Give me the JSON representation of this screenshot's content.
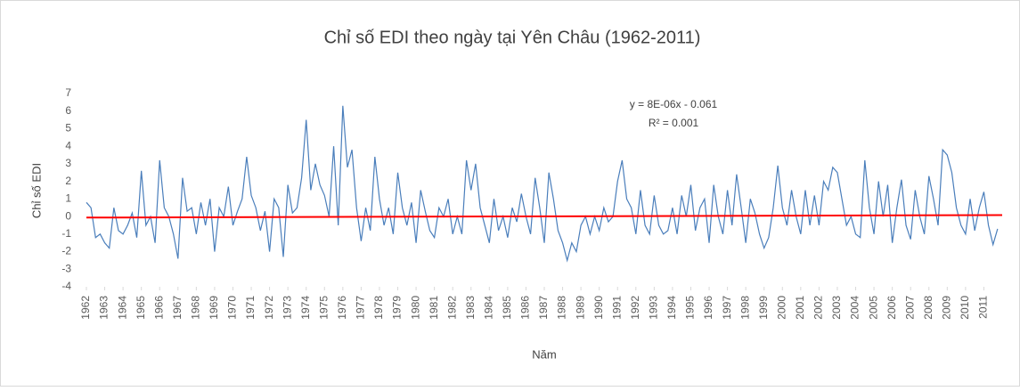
{
  "chart_data": {
    "type": "line",
    "title": "Chỉ số EDI theo ngày tại Yên Châu (1962-2011)",
    "x_label": "Năm",
    "y_label": "Chỉ số EDI",
    "annotations": [
      "y = 8E-06x - 0.061",
      "R² = 0.001"
    ],
    "xlim": [
      1962,
      2012
    ],
    "xticks": [
      1962,
      1963,
      1964,
      1965,
      1966,
      1967,
      1968,
      1969,
      1970,
      1971,
      1972,
      1973,
      1974,
      1975,
      1976,
      1977,
      1978,
      1979,
      1980,
      1981,
      1982,
      1983,
      1984,
      1985,
      1986,
      1987,
      1988,
      1989,
      1990,
      1991,
      1992,
      1993,
      1994,
      1995,
      1996,
      1997,
      1998,
      1999,
      2000,
      2001,
      2002,
      2003,
      2004,
      2005,
      2006,
      2007,
      2008,
      2009,
      2010,
      2011
    ],
    "ylim": [
      -4,
      7
    ],
    "yticks": [
      -4,
      -3,
      -2,
      -1,
      0,
      1,
      2,
      3,
      4,
      5,
      6,
      7
    ],
    "grid": false,
    "trend": {
      "color": "#ff0000",
      "x": [
        1962,
        2012
      ],
      "values": [
        -0.06,
        0.08
      ]
    },
    "series": [
      {
        "name": "EDI",
        "color": "#4a7ebb",
        "x": [
          1962,
          1962.25,
          1962.5,
          1962.75,
          1963,
          1963.25,
          1963.5,
          1963.75,
          1964,
          1964.25,
          1964.5,
          1964.75,
          1965,
          1965.25,
          1965.5,
          1965.75,
          1966,
          1966.25,
          1966.5,
          1966.75,
          1967,
          1967.25,
          1967.5,
          1967.75,
          1968,
          1968.25,
          1968.5,
          1968.75,
          1969,
          1969.25,
          1969.5,
          1969.75,
          1970,
          1970.25,
          1970.5,
          1970.75,
          1971,
          1971.25,
          1971.5,
          1971.75,
          1972,
          1972.25,
          1972.5,
          1972.75,
          1973,
          1973.25,
          1973.5,
          1973.75,
          1974,
          1974.25,
          1974.5,
          1974.75,
          1975,
          1975.25,
          1975.5,
          1975.75,
          1976,
          1976.25,
          1976.5,
          1976.75,
          1977,
          1977.25,
          1977.5,
          1977.75,
          1978,
          1978.25,
          1978.5,
          1978.75,
          1979,
          1979.25,
          1979.5,
          1979.75,
          1980,
          1980.25,
          1980.5,
          1980.75,
          1981,
          1981.25,
          1981.5,
          1981.75,
          1982,
          1982.25,
          1982.5,
          1982.75,
          1983,
          1983.25,
          1983.5,
          1983.75,
          1984,
          1984.25,
          1984.5,
          1984.75,
          1985,
          1985.25,
          1985.5,
          1985.75,
          1986,
          1986.25,
          1986.5,
          1986.75,
          1987,
          1987.25,
          1987.5,
          1987.75,
          1988,
          1988.25,
          1988.5,
          1988.75,
          1989,
          1989.25,
          1989.5,
          1989.75,
          1990,
          1990.25,
          1990.5,
          1990.75,
          1991,
          1991.25,
          1991.5,
          1991.75,
          1992,
          1992.25,
          1992.5,
          1992.75,
          1993,
          1993.25,
          1993.5,
          1993.75,
          1994,
          1994.25,
          1994.5,
          1994.75,
          1995,
          1995.25,
          1995.5,
          1995.75,
          1996,
          1996.25,
          1996.5,
          1996.75,
          1997,
          1997.25,
          1997.5,
          1997.75,
          1998,
          1998.25,
          1998.5,
          1998.75,
          1999,
          1999.25,
          1999.5,
          1999.75,
          2000,
          2000.25,
          2000.5,
          2000.75,
          2001,
          2001.25,
          2001.5,
          2001.75,
          2002,
          2002.25,
          2002.5,
          2002.75,
          2003,
          2003.25,
          2003.5,
          2003.75,
          2004,
          2004.25,
          2004.5,
          2004.75,
          2005,
          2005.25,
          2005.5,
          2005.75,
          2006,
          2006.25,
          2006.5,
          2006.75,
          2007,
          2007.25,
          2007.5,
          2007.75,
          2008,
          2008.25,
          2008.5,
          2008.75,
          2009,
          2009.25,
          2009.5,
          2009.75,
          2010,
          2010.25,
          2010.5,
          2010.75,
          2011,
          2011.25,
          2011.5,
          2011.75
        ],
        "values": [
          0.8,
          0.5,
          -1.2,
          -1.0,
          -1.5,
          -1.8,
          0.5,
          -0.8,
          -1.0,
          -0.5,
          0.2,
          -1.2,
          2.6,
          -0.5,
          0.0,
          -1.5,
          3.2,
          0.5,
          0.0,
          -1.0,
          -2.4,
          2.2,
          0.3,
          0.5,
          -1.0,
          0.8,
          -0.5,
          1.0,
          -2.0,
          0.5,
          0.0,
          1.7,
          -0.5,
          0.3,
          1.0,
          3.4,
          1.2,
          0.5,
          -0.8,
          0.3,
          -2.0,
          1.0,
          0.5,
          -2.3,
          1.8,
          0.2,
          0.5,
          2.2,
          5.5,
          1.5,
          3.0,
          1.8,
          1.2,
          0.0,
          4.0,
          -0.5,
          6.3,
          2.8,
          3.8,
          0.5,
          -1.4,
          0.5,
          -0.8,
          3.4,
          1.0,
          -0.5,
          0.5,
          -1.0,
          2.5,
          0.5,
          -0.5,
          0.8,
          -1.5,
          1.5,
          0.3,
          -0.8,
          -1.2,
          0.5,
          0.0,
          1.0,
          -1.0,
          0.0,
          -1.0,
          3.2,
          1.5,
          3.0,
          0.5,
          -0.5,
          -1.5,
          1.0,
          -0.8,
          0.0,
          -1.2,
          0.5,
          -0.3,
          1.3,
          0.0,
          -1.0,
          2.2,
          0.5,
          -1.5,
          2.5,
          1.0,
          -0.8,
          -1.5,
          -2.5,
          -1.5,
          -2.0,
          -0.5,
          0.0,
          -1.0,
          0.0,
          -0.8,
          0.5,
          -0.3,
          0.0,
          2.0,
          3.2,
          1.0,
          0.5,
          -1.0,
          1.5,
          -0.5,
          -1.0,
          1.2,
          -0.5,
          -1.0,
          -0.8,
          0.5,
          -1.0,
          1.2,
          0.0,
          1.8,
          -0.8,
          0.5,
          1.0,
          -1.5,
          1.8,
          0.0,
          -1.0,
          1.5,
          -0.5,
          2.4,
          0.5,
          -1.5,
          1.0,
          0.2,
          -1.0,
          -1.8,
          -1.2,
          0.5,
          2.9,
          0.5,
          -0.5,
          1.5,
          0.0,
          -1.0,
          1.5,
          -0.5,
          1.2,
          -0.5,
          2.0,
          1.5,
          2.8,
          2.5,
          1.0,
          -0.5,
          0.0,
          -1.0,
          -1.2,
          3.2,
          0.5,
          -1.0,
          2.0,
          0.0,
          1.8,
          -1.5,
          0.5,
          2.1,
          -0.5,
          -1.3,
          1.5,
          0.0,
          -1.0,
          2.3,
          1.0,
          -0.5,
          3.8,
          3.5,
          2.5,
          0.5,
          -0.5,
          -1.0,
          1.0,
          -0.8,
          0.5,
          1.4,
          -0.5,
          -1.6,
          -0.7
        ]
      }
    ]
  }
}
